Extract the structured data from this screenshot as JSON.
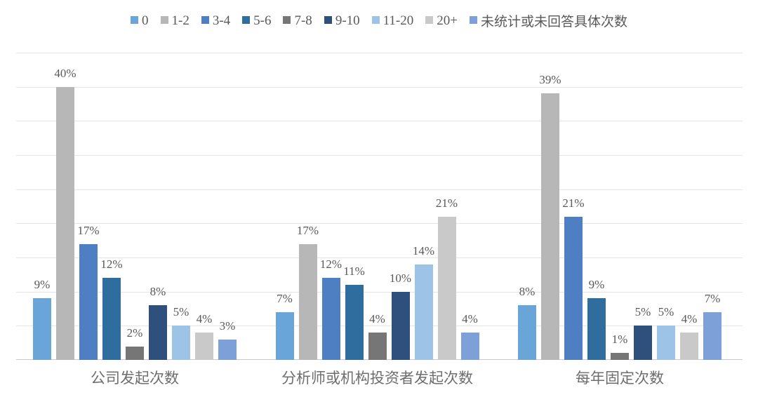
{
  "chart_data": {
    "type": "bar",
    "title": "",
    "xlabel": "",
    "ylabel": "",
    "ylim": [
      0,
      45
    ],
    "gridline_step": 5,
    "grid": true,
    "legend_position": "top",
    "value_suffix": "%",
    "categories": [
      "公司发起次数",
      "分析师或机构投资者发起次数",
      "每年固定次数"
    ],
    "series": [
      {
        "name": "0",
        "color": "#6aa5da",
        "values": [
          9,
          7,
          8
        ]
      },
      {
        "name": "1-2",
        "color": "#b7b7b7",
        "values": [
          40,
          17,
          39
        ]
      },
      {
        "name": "3-4",
        "color": "#4f7fc3",
        "values": [
          17,
          12,
          21
        ]
      },
      {
        "name": "5-6",
        "color": "#2e6d9e",
        "values": [
          12,
          11,
          9
        ]
      },
      {
        "name": "7-8",
        "color": "#767676",
        "values": [
          2,
          4,
          1
        ]
      },
      {
        "name": "9-10",
        "color": "#2f4f7d",
        "values": [
          8,
          10,
          5
        ]
      },
      {
        "name": "11-20",
        "color": "#9dc3e6",
        "values": [
          5,
          14,
          5
        ]
      },
      {
        "name": "20+",
        "color": "#c9c9c9",
        "values": [
          4,
          21,
          4
        ]
      },
      {
        "name": "未统计或未回答具体次数",
        "color": "#7da0d9",
        "values": [
          3,
          4,
          7
        ]
      }
    ]
  },
  "style": {
    "gridline_color": "#e5e5e5",
    "axis_line_color": "#c9c9c9",
    "value_label_color": "#595959",
    "category_label_color": "#6e6e6e",
    "legend_text_color": "#595959",
    "background": "#ffffff"
  }
}
